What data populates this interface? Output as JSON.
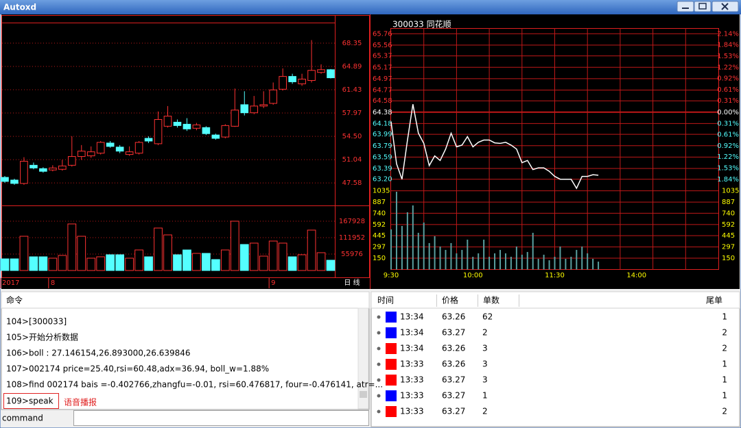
{
  "window": {
    "title": "Autoxd"
  },
  "chart_data": [
    {
      "type": "candlestick",
      "categories": [
        "2017",
        null,
        null,
        null,
        null,
        "8",
        null,
        null,
        null,
        null,
        null,
        null,
        null,
        null,
        null,
        null,
        null,
        null,
        null,
        null,
        null,
        null,
        null,
        null,
        null,
        null,
        null,
        null,
        "9",
        null,
        null,
        null,
        null,
        null,
        null
      ],
      "period_label": "日 线",
      "open": [
        48.4,
        48.0,
        47.5,
        50.2,
        49.7,
        49.5,
        49.6,
        50.2,
        51.5,
        51.6,
        52.0,
        53.5,
        52.9,
        51.8,
        52.0,
        54.2,
        53.4,
        56.0,
        56.6,
        56.3,
        55.7,
        55.8,
        54.7,
        54.4,
        56.0,
        59.2,
        58.0,
        59.0,
        59.4,
        61.5,
        63.4,
        62.3,
        62.8,
        64.0,
        64.4
      ],
      "high": [
        48.6,
        48.2,
        51.4,
        50.6,
        49.9,
        50.2,
        51.0,
        54.5,
        53.2,
        53.0,
        53.8,
        53.8,
        53.2,
        53.0,
        53.8,
        54.5,
        58.2,
        59.0,
        57.0,
        57.2,
        56.5,
        56.0,
        54.9,
        56.3,
        61.6,
        61.2,
        60.5,
        61.2,
        62.5,
        64.6,
        63.8,
        63.8,
        68.8,
        65.2,
        64.5
      ],
      "low": [
        47.6,
        47.3,
        47.3,
        49.6,
        49.1,
        49.3,
        49.4,
        50.0,
        51.0,
        51.3,
        51.8,
        52.8,
        52.0,
        51.6,
        51.8,
        53.5,
        53.2,
        55.8,
        55.8,
        55.3,
        55.4,
        54.7,
        54.0,
        54.2,
        55.9,
        57.6,
        57.8,
        58.7,
        59.2,
        61.3,
        62.3,
        62.0,
        62.5,
        63.8,
        63.1
      ],
      "close": [
        47.8,
        47.5,
        50.8,
        49.8,
        49.3,
        49.8,
        50.1,
        51.5,
        52.3,
        52.2,
        53.6,
        53.0,
        52.3,
        52.2,
        53.6,
        53.8,
        57.0,
        57.5,
        56.1,
        55.6,
        56.2,
        54.9,
        54.2,
        56.1,
        58.4,
        58.0,
        59.0,
        59.2,
        61.4,
        63.4,
        62.6,
        63.0,
        64.3,
        64.4,
        63.2
      ],
      "volume": [
        39650,
        39650,
        116620,
        46650,
        46650,
        41980,
        51310,
        158600,
        116620,
        41980,
        46650,
        53640,
        53640,
        41980,
        69970,
        46650,
        144600,
        121280,
        53640,
        69970,
        58310,
        58310,
        37320,
        69970,
        167930,
        88630,
        93290,
        48980,
        100290,
        93290,
        46650,
        53640,
        137610,
        60640,
        34980
      ],
      "up_color": "#ff3232",
      "down_color": "#54ffff",
      "grid": true,
      "ylim": [
        44.23,
        72.52
      ],
      "yticks": [
        47.58,
        51.04,
        {
          "value": 54.5,
          "label": "54.50"
        },
        57.97,
        61.43,
        64.89,
        68.35
      ],
      "volume_ylim": [
        0,
        221571
      ],
      "volume_yticks": [
        55976,
        111952,
        167928
      ]
    },
    {
      "type": "intraday",
      "title": "300033 同花顺",
      "x": [
        0,
        4,
        8,
        12,
        16,
        20,
        24,
        28,
        32,
        36,
        40,
        44,
        48,
        52,
        56,
        60,
        64,
        68,
        72,
        76,
        80,
        84,
        88,
        92,
        96,
        100,
        104,
        108,
        112,
        116,
        120,
        124,
        128,
        132,
        136,
        140,
        144,
        148,
        152
      ],
      "xlim": [
        0,
        240
      ],
      "xticks": [
        {
          "value": 0,
          "label": "9:30"
        },
        {
          "value": 60,
          "label": "10:00"
        },
        {
          "value": 120,
          "label": "11:30"
        },
        {
          "value": 180,
          "label": "14:00"
        }
      ],
      "series": [
        {
          "color": "#ffffff",
          "values": [
            64.21,
            63.47,
            63.2,
            63.89,
            64.52,
            64.01,
            63.83,
            63.44,
            63.61,
            63.53,
            63.73,
            64.01,
            63.77,
            63.8,
            63.95,
            63.77,
            63.85,
            63.89,
            63.89,
            63.84,
            63.83,
            63.85,
            63.8,
            63.73,
            63.49,
            63.53,
            63.37,
            63.4,
            63.4,
            63.34,
            63.25,
            63.2,
            63.2,
            63.2,
            63.04,
            63.25,
            63.25,
            63.28,
            63.27
          ]
        }
      ],
      "ylim": [
        63.1,
        65.86
      ],
      "yticks": [
        65.76,
        65.56,
        65.37,
        65.17,
        64.97,
        64.77,
        64.58,
        64.38,
        64.18,
        63.99,
        63.79,
        63.59,
        63.39,
        {
          "value": 63.2,
          "label": "63.20"
        }
      ],
      "y2lim": [
        -1.99,
        2.3
      ],
      "y2ticks": [
        {
          "value": 2.14,
          "label": "2.14%"
        },
        {
          "value": 1.84,
          "label": "1.84%"
        },
        {
          "value": 1.53,
          "label": "1.53%"
        },
        {
          "value": 1.22,
          "label": "1.22%"
        },
        {
          "value": 0.92,
          "label": "0.92%"
        },
        {
          "value": 0.61,
          "label": "0.61%"
        },
        {
          "value": 0.31,
          "label": "0.31%"
        },
        {
          "value": 0,
          "label": "0.00%"
        },
        {
          "value": -0.31,
          "label": "0.31%"
        },
        {
          "value": -0.61,
          "label": "0.61%"
        },
        {
          "value": -0.92,
          "label": "0.92%"
        },
        {
          "value": -1.22,
          "label": "1.22%"
        },
        {
          "value": -1.53,
          "label": "1.53%"
        },
        {
          "value": -1.84,
          "label": "1.84%"
        }
      ],
      "volume": {
        "color": "#5aa0a0",
        "values": [
          528,
          1023,
          573,
          753,
          843,
          483,
          618,
          348,
          438,
          303,
          258,
          348,
          213,
          258,
          393,
          168,
          213,
          393,
          168,
          213,
          258,
          213,
          168,
          303,
          195,
          231,
          483,
          141,
          195,
          122,
          168,
          303,
          141,
          168,
          258,
          303,
          213,
          141,
          104
        ]
      },
      "volume_ylim": [
        0,
        1113
      ],
      "volume_yticks": [
        150,
        297,
        445,
        592,
        740,
        887,
        1035
      ],
      "up_color": "#ff3232",
      "flat_color": "#ffffff",
      "down_color": "#54ffff",
      "grid": true
    }
  ],
  "command_log": {
    "header": "命令",
    "lines": [
      "104>[300033]",
      "105>开始分析数据",
      "106>boll : 27.146154,26.893000,26.639846",
      "107>002174 price=25.40,rsi=60.48,adx=36.94, boll_w=1.88%",
      "108>find 002174 bais =-0.402766,zhangfu=-0.01, rsi=60.476817, four=-0.476141, atr=..."
    ],
    "highlighted": "109>speak",
    "annotation": "语音播报",
    "input_label": "command"
  },
  "trades": {
    "columns": [
      "时间",
      "价格",
      "单数",
      "尾单"
    ],
    "rows": [
      {
        "color": "#0000ff",
        "time": "13:34",
        "price": "63.26",
        "count": "62",
        "tail": "1"
      },
      {
        "color": "#0000ff",
        "time": "13:34",
        "price": "63.27",
        "count": "2",
        "tail": "2"
      },
      {
        "color": "#ff0000",
        "time": "13:34",
        "price": "63.26",
        "count": "3",
        "tail": "2"
      },
      {
        "color": "#ff0000",
        "time": "13:33",
        "price": "63.26",
        "count": "3",
        "tail": "1"
      },
      {
        "color": "#ff0000",
        "time": "13:33",
        "price": "63.27",
        "count": "3",
        "tail": "1"
      },
      {
        "color": "#0000ff",
        "time": "13:33",
        "price": "63.27",
        "count": "1",
        "tail": "1"
      },
      {
        "color": "#ff0000",
        "time": "13:33",
        "price": "63.27",
        "count": "2",
        "tail": "2"
      }
    ]
  }
}
